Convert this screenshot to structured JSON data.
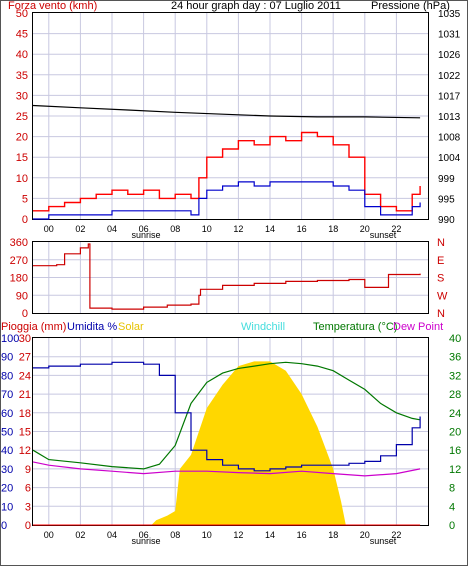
{
  "header": {
    "wind_label": "Forza vento (kmh)",
    "title": "24 hour graph day : 07 Luglio 2011",
    "pressure_label": "Pressione (hPa)"
  },
  "time_axis": {
    "ticks": [
      "00",
      "02",
      "04",
      "06",
      "08",
      "10",
      "12",
      "14",
      "16",
      "18",
      "20",
      "22"
    ],
    "sunrise_label": "sunrise",
    "sunset_label": "sunset"
  },
  "bottom_legend": {
    "rain": "Pioggia (mm)",
    "humidity": "Umidita %",
    "solar": "Solar",
    "windchill": "Windchill",
    "temperature": "Temperatura (°C)",
    "dewpoint": "Dew Point"
  },
  "colors": {
    "wind_gust": "#ff0000",
    "wind_avg": "#0000cc",
    "pressure": "#000000",
    "direction": "#cc0000",
    "humidity": "#0000aa",
    "solar": "#ffd700",
    "temperature": "#007700",
    "dewpoint": "#cc00cc",
    "windchill": "#00dddd",
    "rain": "#ff0000",
    "grid": "#c8c8e0"
  },
  "chart_data": [
    {
      "type": "line",
      "name": "wind-pressure",
      "x_unit": "hour",
      "xlim": [
        -1,
        24
      ],
      "ylim_left": [
        0,
        50
      ],
      "ylim_right": [
        990,
        1035
      ],
      "left_ticks": [
        "0",
        "5",
        "10",
        "15",
        "20",
        "25",
        "30",
        "35",
        "40",
        "45",
        "50"
      ],
      "right_ticks": [
        "990",
        "995",
        "999",
        "1004",
        "1008",
        "1013",
        "1017",
        "1022",
        "1026",
        "1031",
        "1035"
      ],
      "series": [
        {
          "name": "Forza vento (kmh)",
          "axis": "left",
          "x": [
            -1,
            0,
            1,
            2,
            3,
            4,
            5,
            6,
            7,
            8,
            9,
            9.5,
            10,
            11,
            12,
            13,
            14,
            15,
            16,
            17,
            18,
            19,
            20,
            21,
            22,
            23,
            23.5
          ],
          "y": [
            2,
            3,
            4,
            5,
            6,
            7,
            6,
            7,
            5,
            6,
            5,
            10,
            15,
            17,
            19,
            18,
            20,
            19,
            21,
            20,
            18,
            15,
            6,
            3,
            2,
            6,
            8
          ]
        },
        {
          "name": "wind average",
          "axis": "left",
          "x": [
            -1,
            0,
            2,
            4,
            6,
            8,
            9,
            9.5,
            10,
            11,
            12,
            13,
            14,
            15,
            16,
            17,
            18,
            19,
            20,
            21,
            22,
            23,
            23.5
          ],
          "y": [
            0,
            1,
            1,
            2,
            2,
            2,
            1,
            5,
            7,
            8,
            9,
            8,
            9,
            9,
            9,
            9,
            8,
            7,
            3,
            1,
            1,
            3,
            4
          ]
        },
        {
          "name": "Pressione (hPa)",
          "axis": "right",
          "x": [
            -1,
            2,
            5,
            8,
            11,
            14,
            17,
            20,
            23.5
          ],
          "y": [
            1014.8,
            1014.3,
            1013.8,
            1013.3,
            1012.9,
            1012.5,
            1012.3,
            1012.3,
            1012.1
          ]
        }
      ]
    },
    {
      "type": "line",
      "name": "wind-direction",
      "x_unit": "hour",
      "xlim": [
        -1,
        24
      ],
      "ylim": [
        0,
        360
      ],
      "left_ticks": [
        "0",
        "90",
        "180",
        "270",
        "360"
      ],
      "right_ticks": [
        "N",
        "W",
        "S",
        "E",
        "N"
      ],
      "series": [
        {
          "name": "direction",
          "x": [
            -1,
            0.5,
            1,
            2,
            2.5,
            2.6,
            4,
            6,
            7.5,
            8,
            9,
            9.5,
            9.6,
            11,
            13,
            15,
            17,
            19,
            20,
            21,
            21.5,
            23.5
          ],
          "y": [
            240,
            245,
            300,
            330,
            350,
            25,
            20,
            30,
            40,
            40,
            45,
            90,
            120,
            140,
            150,
            160,
            165,
            170,
            130,
            130,
            195,
            200
          ]
        }
      ]
    },
    {
      "type": "line",
      "name": "humidity-temperature-solar",
      "x_unit": "hour",
      "xlim": [
        -1,
        24
      ],
      "ylim_left_rain": [
        0,
        30
      ],
      "ylim_left_humidity": [
        0,
        100
      ],
      "ylim_right": [
        0,
        40
      ],
      "rain_ticks": [
        "0",
        "3",
        "6",
        "9",
        "12",
        "15",
        "18",
        "21",
        "24",
        "27",
        "30"
      ],
      "humidity_ticks": [
        "0",
        "10",
        "20",
        "30",
        "40",
        "50",
        "60",
        "70",
        "80",
        "90",
        "100"
      ],
      "right_ticks": [
        "0",
        "4",
        "8",
        "12",
        "16",
        "20",
        "24",
        "28",
        "32",
        "36",
        "40"
      ],
      "series": [
        {
          "name": "Umidita %",
          "axis": "humidity",
          "x": [
            -1,
            0,
            2,
            4,
            6,
            7,
            8,
            9,
            10,
            11,
            12,
            13,
            14,
            15,
            16,
            17,
            18,
            19,
            20,
            21,
            22,
            23,
            23.5
          ],
          "y": [
            84,
            85,
            86,
            87,
            86,
            80,
            60,
            40,
            35,
            32,
            30,
            29,
            30,
            31,
            32,
            32,
            32,
            33,
            34,
            37,
            43,
            52,
            58
          ]
        },
        {
          "name": "Temperatura (°C)",
          "axis": "right",
          "x": [
            -1,
            0,
            2,
            4,
            6,
            7,
            8,
            9,
            10,
            11,
            12,
            13,
            14,
            15,
            16,
            17,
            18,
            19,
            20,
            21,
            22,
            23,
            23.5
          ],
          "y": [
            16,
            14,
            13.3,
            12.5,
            12,
            13,
            17,
            26,
            30.5,
            32.5,
            33.5,
            34,
            34.5,
            34.8,
            34.5,
            34,
            33,
            31,
            29,
            26,
            24,
            22.8,
            22.5
          ]
        },
        {
          "name": "Dew Point",
          "axis": "right",
          "x": [
            -1,
            0,
            2,
            4,
            6,
            8,
            10,
            12,
            14,
            16,
            18,
            20,
            22,
            23.5
          ],
          "y": [
            13.5,
            12.8,
            12,
            11.5,
            11,
            11.5,
            11.5,
            11.2,
            11,
            11.5,
            11,
            10.5,
            11,
            12
          ]
        },
        {
          "name": "Solar",
          "axis": "right",
          "x": [
            6.5,
            6.8,
            7.5,
            8,
            8.3,
            9,
            10,
            11,
            12,
            13,
            14,
            15,
            16,
            17,
            18,
            18.5,
            18.8
          ],
          "y": [
            0,
            1,
            2,
            3,
            12,
            15,
            25,
            30,
            34,
            35,
            35,
            33,
            28,
            21,
            12,
            5,
            0
          ]
        },
        {
          "name": "Pioggia (mm)",
          "axis": "rain",
          "x": [
            -1,
            23.5
          ],
          "y": [
            0,
            0
          ]
        }
      ]
    }
  ]
}
